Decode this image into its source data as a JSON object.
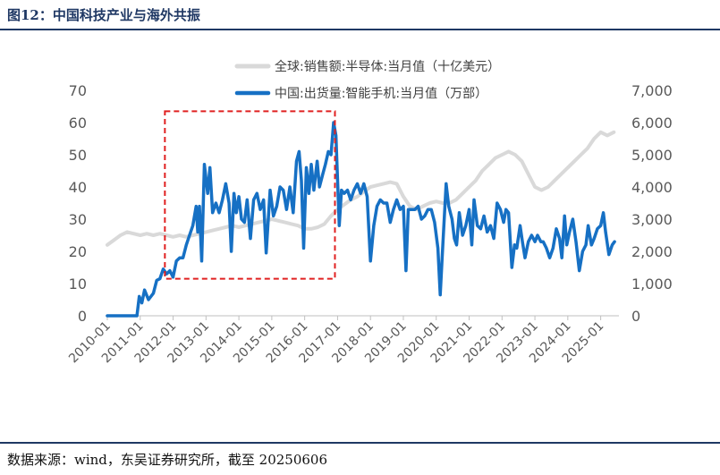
{
  "figure": {
    "title": "图12：中国科技产业与海外共振",
    "source": "数据来源：wind，东吴证券研究所，截至 20250606"
  },
  "chart_data": {
    "type": "line",
    "title": "",
    "y_left": {
      "ylim": [
        0,
        70
      ],
      "ticks": [
        "0",
        "10",
        "20",
        "30",
        "40",
        "50",
        "60",
        "70"
      ]
    },
    "y_right": {
      "ylim": [
        0,
        7000
      ],
      "ticks": [
        "0",
        "1,000",
        "2,000",
        "3,000",
        "4,000",
        "5,000",
        "6,000",
        "7,000"
      ]
    },
    "x": {
      "start": 2010.0,
      "end": 2025.5,
      "tick_labels": [
        "2010-01",
        "2011-01",
        "2012-01",
        "2013-01",
        "2014-01",
        "2015-01",
        "2016-01",
        "2017-01",
        "2018-01",
        "2019-01",
        "2020-01",
        "2021-01",
        "2022-01",
        "2023-01",
        "2024-01",
        "2025-01"
      ]
    },
    "legend": {
      "placement": "top-right"
    },
    "annotation": {
      "type": "dashed-box",
      "color": "#e02020",
      "x_range": [
        2011.75,
        2016.92
      ],
      "y_range_left": [
        11.5,
        63.5
      ]
    },
    "series": [
      {
        "name": "全球:销售额:半导体:当月值（十亿美元）",
        "axis": "left",
        "color": "#d9d9d9",
        "points": [
          [
            2010.0,
            22
          ],
          [
            2010.2,
            23.5
          ],
          [
            2010.4,
            25
          ],
          [
            2010.6,
            26
          ],
          [
            2010.8,
            25.5
          ],
          [
            2011.0,
            25
          ],
          [
            2011.2,
            25.5
          ],
          [
            2011.4,
            25
          ],
          [
            2011.6,
            25.5
          ],
          [
            2011.8,
            25
          ],
          [
            2012.0,
            24.5
          ],
          [
            2012.2,
            25
          ],
          [
            2012.4,
            24.5
          ],
          [
            2012.6,
            25
          ],
          [
            2012.8,
            25.5
          ],
          [
            2013.0,
            26
          ],
          [
            2013.2,
            26.5
          ],
          [
            2013.4,
            27
          ],
          [
            2013.6,
            27.5
          ],
          [
            2013.8,
            28
          ],
          [
            2014.0,
            27.5
          ],
          [
            2014.2,
            28
          ],
          [
            2014.4,
            28.5
          ],
          [
            2014.6,
            29
          ],
          [
            2014.8,
            29.5
          ],
          [
            2015.0,
            30
          ],
          [
            2015.2,
            29.5
          ],
          [
            2015.4,
            29
          ],
          [
            2015.6,
            28.5
          ],
          [
            2015.8,
            28
          ],
          [
            2016.0,
            27
          ],
          [
            2016.2,
            27
          ],
          [
            2016.4,
            27.5
          ],
          [
            2016.6,
            28.5
          ],
          [
            2016.8,
            31
          ],
          [
            2017.0,
            33
          ],
          [
            2017.2,
            34.5
          ],
          [
            2017.4,
            36
          ],
          [
            2017.6,
            37
          ],
          [
            2017.8,
            38.5
          ],
          [
            2018.0,
            40
          ],
          [
            2018.2,
            40.5
          ],
          [
            2018.4,
            41
          ],
          [
            2018.6,
            41.5
          ],
          [
            2018.8,
            41
          ],
          [
            2019.0,
            37
          ],
          [
            2019.2,
            34
          ],
          [
            2019.4,
            33
          ],
          [
            2019.6,
            34
          ],
          [
            2019.8,
            35
          ],
          [
            2020.0,
            35.5
          ],
          [
            2020.2,
            35
          ],
          [
            2020.4,
            35
          ],
          [
            2020.6,
            36
          ],
          [
            2020.8,
            38
          ],
          [
            2021.0,
            40
          ],
          [
            2021.2,
            42
          ],
          [
            2021.4,
            45
          ],
          [
            2021.6,
            47
          ],
          [
            2021.8,
            49
          ],
          [
            2022.0,
            50
          ],
          [
            2022.2,
            51
          ],
          [
            2022.4,
            50
          ],
          [
            2022.6,
            48
          ],
          [
            2022.8,
            44
          ],
          [
            2023.0,
            40
          ],
          [
            2023.2,
            39
          ],
          [
            2023.4,
            40
          ],
          [
            2023.6,
            42
          ],
          [
            2023.8,
            44
          ],
          [
            2024.0,
            46
          ],
          [
            2024.2,
            48
          ],
          [
            2024.4,
            50
          ],
          [
            2024.6,
            52
          ],
          [
            2024.8,
            55
          ],
          [
            2025.0,
            57
          ],
          [
            2025.2,
            56
          ],
          [
            2025.4,
            57
          ]
        ]
      },
      {
        "name": "中国:出货量:智能手机:当月值（万部）",
        "axis": "right",
        "color": "#1670c4",
        "points": [
          [
            2010.0,
            0
          ],
          [
            2010.9,
            0
          ],
          [
            2010.97,
            600
          ],
          [
            2011.05,
            400
          ],
          [
            2011.13,
            800
          ],
          [
            2011.25,
            500
          ],
          [
            2011.4,
            700
          ],
          [
            2011.5,
            1100
          ],
          [
            2011.6,
            1150
          ],
          [
            2011.7,
            1450
          ],
          [
            2011.8,
            1300
          ],
          [
            2011.9,
            1400
          ],
          [
            2012.0,
            1200
          ],
          [
            2012.1,
            1700
          ],
          [
            2012.2,
            1800
          ],
          [
            2012.3,
            1800
          ],
          [
            2012.4,
            2200
          ],
          [
            2012.5,
            2500
          ],
          [
            2012.6,
            2800
          ],
          [
            2012.7,
            3400
          ],
          [
            2012.75,
            2600
          ],
          [
            2012.8,
            3400
          ],
          [
            2012.87,
            1700
          ],
          [
            2012.95,
            4700
          ],
          [
            2013.05,
            3800
          ],
          [
            2013.12,
            4600
          ],
          [
            2013.2,
            3200
          ],
          [
            2013.3,
            3500
          ],
          [
            2013.4,
            3200
          ],
          [
            2013.5,
            3600
          ],
          [
            2013.6,
            4100
          ],
          [
            2013.7,
            3500
          ],
          [
            2013.77,
            2000
          ],
          [
            2013.85,
            3800
          ],
          [
            2013.92,
            3200
          ],
          [
            2014.0,
            3700
          ],
          [
            2014.08,
            3000
          ],
          [
            2014.17,
            2900
          ],
          [
            2014.25,
            3600
          ],
          [
            2014.35,
            2400
          ],
          [
            2014.45,
            3600
          ],
          [
            2014.55,
            3800
          ],
          [
            2014.65,
            3300
          ],
          [
            2014.75,
            3600
          ],
          [
            2014.83,
            1950
          ],
          [
            2014.95,
            3900
          ],
          [
            2015.05,
            3100
          ],
          [
            2015.15,
            3400
          ],
          [
            2015.25,
            4000
          ],
          [
            2015.35,
            3900
          ],
          [
            2015.45,
            3300
          ],
          [
            2015.55,
            4000
          ],
          [
            2015.65,
            3200
          ],
          [
            2015.75,
            4800
          ],
          [
            2015.83,
            5100
          ],
          [
            2015.9,
            4200
          ],
          [
            2015.97,
            2100
          ],
          [
            2016.05,
            4600
          ],
          [
            2016.13,
            3800
          ],
          [
            2016.2,
            4700
          ],
          [
            2016.28,
            3900
          ],
          [
            2016.38,
            4800
          ],
          [
            2016.45,
            4000
          ],
          [
            2016.55,
            4400
          ],
          [
            2016.63,
            4700
          ],
          [
            2016.72,
            5100
          ],
          [
            2016.8,
            5000
          ],
          [
            2016.88,
            6000
          ],
          [
            2016.95,
            5600
          ],
          [
            2017.05,
            2800
          ],
          [
            2017.12,
            3900
          ],
          [
            2017.2,
            3800
          ],
          [
            2017.3,
            3900
          ],
          [
            2017.4,
            3600
          ],
          [
            2017.5,
            3900
          ],
          [
            2017.6,
            4100
          ],
          [
            2017.7,
            3800
          ],
          [
            2017.8,
            4100
          ],
          [
            2017.9,
            3700
          ],
          [
            2018.0,
            1700
          ],
          [
            2018.1,
            2800
          ],
          [
            2018.2,
            3400
          ],
          [
            2018.3,
            3600
          ],
          [
            2018.4,
            3500
          ],
          [
            2018.5,
            3500
          ],
          [
            2018.6,
            2900
          ],
          [
            2018.7,
            3300
          ],
          [
            2018.8,
            3600
          ],
          [
            2018.9,
            3300
          ],
          [
            2019.0,
            3400
          ],
          [
            2019.08,
            1400
          ],
          [
            2019.15,
            3300
          ],
          [
            2019.25,
            3300
          ],
          [
            2019.35,
            3300
          ],
          [
            2019.45,
            3400
          ],
          [
            2019.55,
            3000
          ],
          [
            2019.65,
            3100
          ],
          [
            2019.75,
            3300
          ],
          [
            2019.85,
            3300
          ],
          [
            2019.95,
            2900
          ],
          [
            2020.05,
            2100
          ],
          [
            2020.12,
            650
          ],
          [
            2020.2,
            2200
          ],
          [
            2020.3,
            4100
          ],
          [
            2020.38,
            3400
          ],
          [
            2020.48,
            3000
          ],
          [
            2020.55,
            2400
          ],
          [
            2020.62,
            2200
          ],
          [
            2020.7,
            3200
          ],
          [
            2020.8,
            2500
          ],
          [
            2020.9,
            2800
          ],
          [
            2021.0,
            3300
          ],
          [
            2021.08,
            2200
          ],
          [
            2021.15,
            3600
          ],
          [
            2021.25,
            2800
          ],
          [
            2021.35,
            2700
          ],
          [
            2021.45,
            3100
          ],
          [
            2021.55,
            2600
          ],
          [
            2021.65,
            2800
          ],
          [
            2021.75,
            2400
          ],
          [
            2021.85,
            3500
          ],
          [
            2021.95,
            3300
          ],
          [
            2022.05,
            2900
          ],
          [
            2022.12,
            3300
          ],
          [
            2022.2,
            3200
          ],
          [
            2022.3,
            1500
          ],
          [
            2022.38,
            2200
          ],
          [
            2022.45,
            2100
          ],
          [
            2022.55,
            2800
          ],
          [
            2022.62,
            2300
          ],
          [
            2022.7,
            1800
          ],
          [
            2022.8,
            2300
          ],
          [
            2022.9,
            2500
          ],
          [
            2023.0,
            2300
          ],
          [
            2023.08,
            2500
          ],
          [
            2023.18,
            2300
          ],
          [
            2023.25,
            2300
          ],
          [
            2023.35,
            2100
          ],
          [
            2023.45,
            1800
          ],
          [
            2023.55,
            2100
          ],
          [
            2023.65,
            2700
          ],
          [
            2023.75,
            2400
          ],
          [
            2023.82,
            1800
          ],
          [
            2023.9,
            3100
          ],
          [
            2023.97,
            2200
          ],
          [
            2024.05,
            2600
          ],
          [
            2024.15,
            3000
          ],
          [
            2024.25,
            2300
          ],
          [
            2024.35,
            1400
          ],
          [
            2024.45,
            2000
          ],
          [
            2024.55,
            2200
          ],
          [
            2024.62,
            2800
          ],
          [
            2024.72,
            2200
          ],
          [
            2024.8,
            2400
          ],
          [
            2024.9,
            2700
          ],
          [
            2025.0,
            2800
          ],
          [
            2025.08,
            3200
          ],
          [
            2025.15,
            2600
          ],
          [
            2025.25,
            1900
          ],
          [
            2025.35,
            2200
          ],
          [
            2025.42,
            2300
          ]
        ]
      }
    ]
  }
}
